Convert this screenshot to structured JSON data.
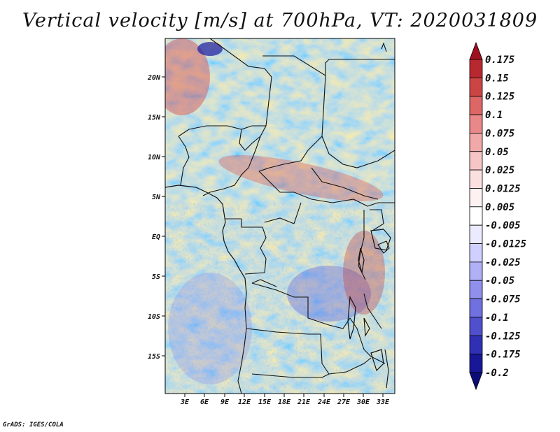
{
  "title": "Vertical velocity [m/s] at 700hPa, VT: 2020031809",
  "credit": "GrADS: IGES/COLA",
  "map": {
    "lat_ticks": [
      "20N",
      "15N",
      "10N",
      "5N",
      "EQ",
      "5S",
      "10S",
      "15S"
    ],
    "lon_ticks": [
      "3E",
      "6E",
      "9E",
      "12E",
      "15E",
      "18E",
      "21E",
      "24E",
      "27E",
      "30E",
      "33E"
    ]
  },
  "colorbar": {
    "labels": [
      "0.175",
      "0.15",
      "0.125",
      "0.1",
      "0.075",
      "0.05",
      "0.025",
      "0.0125",
      "0.005",
      "-0.005",
      "-0.0125",
      "-0.025",
      "-0.05",
      "-0.075",
      "-0.1",
      "-0.125",
      "-0.175",
      "-0.2"
    ],
    "colors": [
      "#a01020",
      "#b82830",
      "#cc4545",
      "#dd6666",
      "#e88888",
      "#f0a8a8",
      "#f6c6c6",
      "#fbe0e0",
      "#fdf1f1",
      "#ffffff",
      "#eceaff",
      "#cfd0ff",
      "#b0b0f6",
      "#9090ec",
      "#7070de",
      "#5050cc",
      "#3030b4",
      "#181896",
      "#0c0c78"
    ]
  }
}
